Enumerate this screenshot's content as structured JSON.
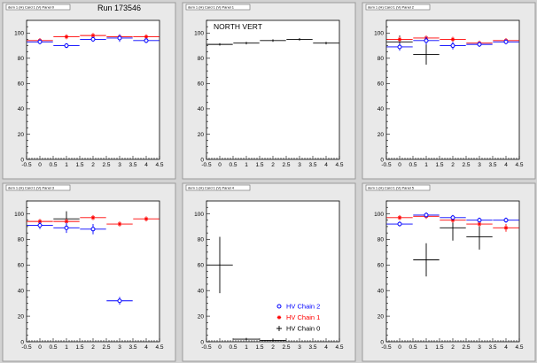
{
  "run_label": "Run 173546",
  "legend": {
    "entries": [
      {
        "label": "HV Chain 2",
        "color": "#0000ff",
        "marker": "circle"
      },
      {
        "label": "HV Chain 1",
        "color": "#ff0000",
        "marker": "star"
      },
      {
        "label": "HV Chain 0",
        "color": "#000000",
        "marker": "cross"
      }
    ]
  },
  "chart_data": [
    {
      "type": "scatter",
      "title": "dem 1 (H) Card 1 (V) Panel 0",
      "xlim": [
        -0.5,
        4.5
      ],
      "ylim": [
        0,
        110
      ],
      "xticks": [
        "-0.5",
        "0",
        "0.5",
        "1",
        "1.5",
        "2",
        "2.5",
        "3",
        "3.5",
        "4",
        "4.5"
      ],
      "yticks": [
        "0",
        "20",
        "40",
        "60",
        "80",
        "100"
      ],
      "series": [
        {
          "name": "HV Chain 2",
          "color": "#0000ff",
          "marker": "circle",
          "points": [
            {
              "x": 0,
              "y": 93,
              "yerr": 2
            },
            {
              "x": 1,
              "y": 90,
              "yerr": 2
            },
            {
              "x": 2,
              "y": 95,
              "yerr": 2
            },
            {
              "x": 3,
              "y": 96,
              "yerr": 3
            },
            {
              "x": 4,
              "y": 94,
              "yerr": 2
            }
          ]
        },
        {
          "name": "HV Chain 1",
          "color": "#ff0000",
          "marker": "star",
          "points": [
            {
              "x": 0,
              "y": 94,
              "yerr": 2
            },
            {
              "x": 1,
              "y": 97,
              "yerr": 2
            },
            {
              "x": 2,
              "y": 98,
              "yerr": 2
            },
            {
              "x": 3,
              "y": 97,
              "yerr": 2
            },
            {
              "x": 4,
              "y": 97,
              "yerr": 2
            }
          ]
        }
      ]
    },
    {
      "type": "scatter",
      "title": "dem 1 (H) Card 1 (V) Panel 1",
      "annotation": "NORTH VERT",
      "xlim": [
        -0.5,
        4.5
      ],
      "ylim": [
        0,
        110
      ],
      "xticks": [
        "-0.5",
        "0",
        "0.5",
        "1",
        "1.5",
        "2",
        "2.5",
        "3",
        "3.5",
        "4",
        "4.5"
      ],
      "yticks": [
        "0",
        "20",
        "40",
        "60",
        "80",
        "100"
      ],
      "series": [
        {
          "name": "HV Chain 0",
          "color": "#000000",
          "marker": "cross",
          "points": [
            {
              "x": 0,
              "y": 91,
              "yerr": 1
            },
            {
              "x": 1,
              "y": 92,
              "yerr": 1
            },
            {
              "x": 2,
              "y": 94,
              "yerr": 1
            },
            {
              "x": 3,
              "y": 95,
              "yerr": 1
            },
            {
              "x": 4,
              "y": 92,
              "yerr": 1
            }
          ]
        }
      ]
    },
    {
      "type": "scatter",
      "title": "dem 1 (H) Card 1 (V) Panel 2",
      "xlim": [
        -0.5,
        4.5
      ],
      "ylim": [
        0,
        110
      ],
      "xticks": [
        "-0.5",
        "0",
        "0.5",
        "1",
        "1.5",
        "2",
        "2.5",
        "3",
        "3.5",
        "4",
        "4.5"
      ],
      "yticks": [
        "0",
        "20",
        "40",
        "60",
        "80",
        "100"
      ],
      "series": [
        {
          "name": "HV Chain 2",
          "color": "#0000ff",
          "marker": "circle",
          "points": [
            {
              "x": 0,
              "y": 89,
              "yerr": 3
            },
            {
              "x": 1,
              "y": 94,
              "yerr": 3
            },
            {
              "x": 2,
              "y": 90,
              "yerr": 3
            },
            {
              "x": 3,
              "y": 91,
              "yerr": 2
            },
            {
              "x": 4,
              "y": 93,
              "yerr": 2
            }
          ]
        },
        {
          "name": "HV Chain 1",
          "color": "#ff0000",
          "marker": "star",
          "points": [
            {
              "x": 0,
              "y": 95,
              "yerr": 2
            },
            {
              "x": 1,
              "y": 96,
              "yerr": 2
            },
            {
              "x": 2,
              "y": 95,
              "yerr": 2
            },
            {
              "x": 3,
              "y": 92,
              "yerr": 2
            },
            {
              "x": 4,
              "y": 94,
              "yerr": 2
            }
          ]
        },
        {
          "name": "HV Chain 0",
          "color": "#000000",
          "marker": "cross",
          "points": [
            {
              "x": 0,
              "y": 93,
              "yerr": 5
            },
            {
              "x": 1,
              "y": 83,
              "yerr": 8
            }
          ]
        }
      ]
    },
    {
      "type": "scatter",
      "title": "dem 1 (H) Card 1 (V) Panel 3",
      "xlim": [
        -0.5,
        4.5
      ],
      "ylim": [
        0,
        110
      ],
      "xticks": [
        "-0.5",
        "0",
        "0.5",
        "1",
        "1.5",
        "2",
        "2.5",
        "3",
        "3.5",
        "4",
        "4.5"
      ],
      "yticks": [
        "0",
        "20",
        "40",
        "60",
        "80",
        "100"
      ],
      "series": [
        {
          "name": "HV Chain 2",
          "color": "#0000ff",
          "marker": "circle",
          "points": [
            {
              "x": 0,
              "y": 91,
              "yerr": 3
            },
            {
              "x": 1,
              "y": 89,
              "yerr": 4
            },
            {
              "x": 2,
              "y": 88,
              "yerr": 4
            },
            {
              "x": 3,
              "y": 32,
              "yerr": 3
            }
          ]
        },
        {
          "name": "HV Chain 1",
          "color": "#ff0000",
          "marker": "star",
          "points": [
            {
              "x": 0,
              "y": 94,
              "yerr": 2
            },
            {
              "x": 1,
              "y": 94,
              "yerr": 2
            },
            {
              "x": 2,
              "y": 97,
              "yerr": 2
            },
            {
              "x": 3,
              "y": 92,
              "yerr": 2
            },
            {
              "x": 4,
              "y": 96,
              "yerr": 2
            }
          ]
        },
        {
          "name": "HV Chain 0",
          "color": "#000000",
          "marker": "cross",
          "points": [
            {
              "x": 1,
              "y": 96,
              "yerr": 6
            }
          ]
        }
      ]
    },
    {
      "type": "scatter",
      "title": "dem 1 (H) Card 1 (V) Panel 4",
      "xlim": [
        -0.5,
        4.5
      ],
      "ylim": [
        0,
        110
      ],
      "xticks": [
        "-0.5",
        "0",
        "0.5",
        "1",
        "1.5",
        "2",
        "2.5",
        "3",
        "3.5",
        "4",
        "4.5"
      ],
      "yticks": [
        "0",
        "20",
        "40",
        "60",
        "80",
        "100"
      ],
      "series": [
        {
          "name": "HV Chain 0",
          "color": "#000000",
          "marker": "cross",
          "points": [
            {
              "x": 0,
              "y": 60,
              "yerr": 22
            },
            {
              "x": 1,
              "y": 2,
              "yerr": 1
            },
            {
              "x": 2,
              "y": 1,
              "yerr": 1
            }
          ]
        }
      ]
    },
    {
      "type": "scatter",
      "title": "dem 1 (H) Card 1 (V) Panel 5",
      "xlim": [
        -0.5,
        4.5
      ],
      "ylim": [
        0,
        110
      ],
      "xticks": [
        "-0.5",
        "0",
        "0.5",
        "1",
        "1.5",
        "2",
        "2.5",
        "3",
        "3.5",
        "4",
        "4.5"
      ],
      "yticks": [
        "0",
        "20",
        "40",
        "60",
        "80",
        "100"
      ],
      "series": [
        {
          "name": "HV Chain 2",
          "color": "#0000ff",
          "marker": "circle",
          "points": [
            {
              "x": 0,
              "y": 92,
              "yerr": 2
            },
            {
              "x": 1,
              "y": 99,
              "yerr": 2
            },
            {
              "x": 2,
              "y": 97,
              "yerr": 2
            },
            {
              "x": 3,
              "y": 95,
              "yerr": 2
            },
            {
              "x": 4,
              "y": 95,
              "yerr": 2
            }
          ]
        },
        {
          "name": "HV Chain 1",
          "color": "#ff0000",
          "marker": "star",
          "points": [
            {
              "x": 0,
              "y": 97,
              "yerr": 2
            },
            {
              "x": 1,
              "y": 98,
              "yerr": 2
            },
            {
              "x": 2,
              "y": 95,
              "yerr": 2
            },
            {
              "x": 3,
              "y": 92,
              "yerr": 2
            },
            {
              "x": 4,
              "y": 89,
              "yerr": 3
            }
          ]
        },
        {
          "name": "HV Chain 0",
          "color": "#000000",
          "marker": "cross",
          "points": [
            {
              "x": 1,
              "y": 64,
              "yerr": 13
            },
            {
              "x": 2,
              "y": 89,
              "yerr": 10
            },
            {
              "x": 3,
              "y": 82,
              "yerr": 10
            }
          ]
        }
      ]
    }
  ]
}
